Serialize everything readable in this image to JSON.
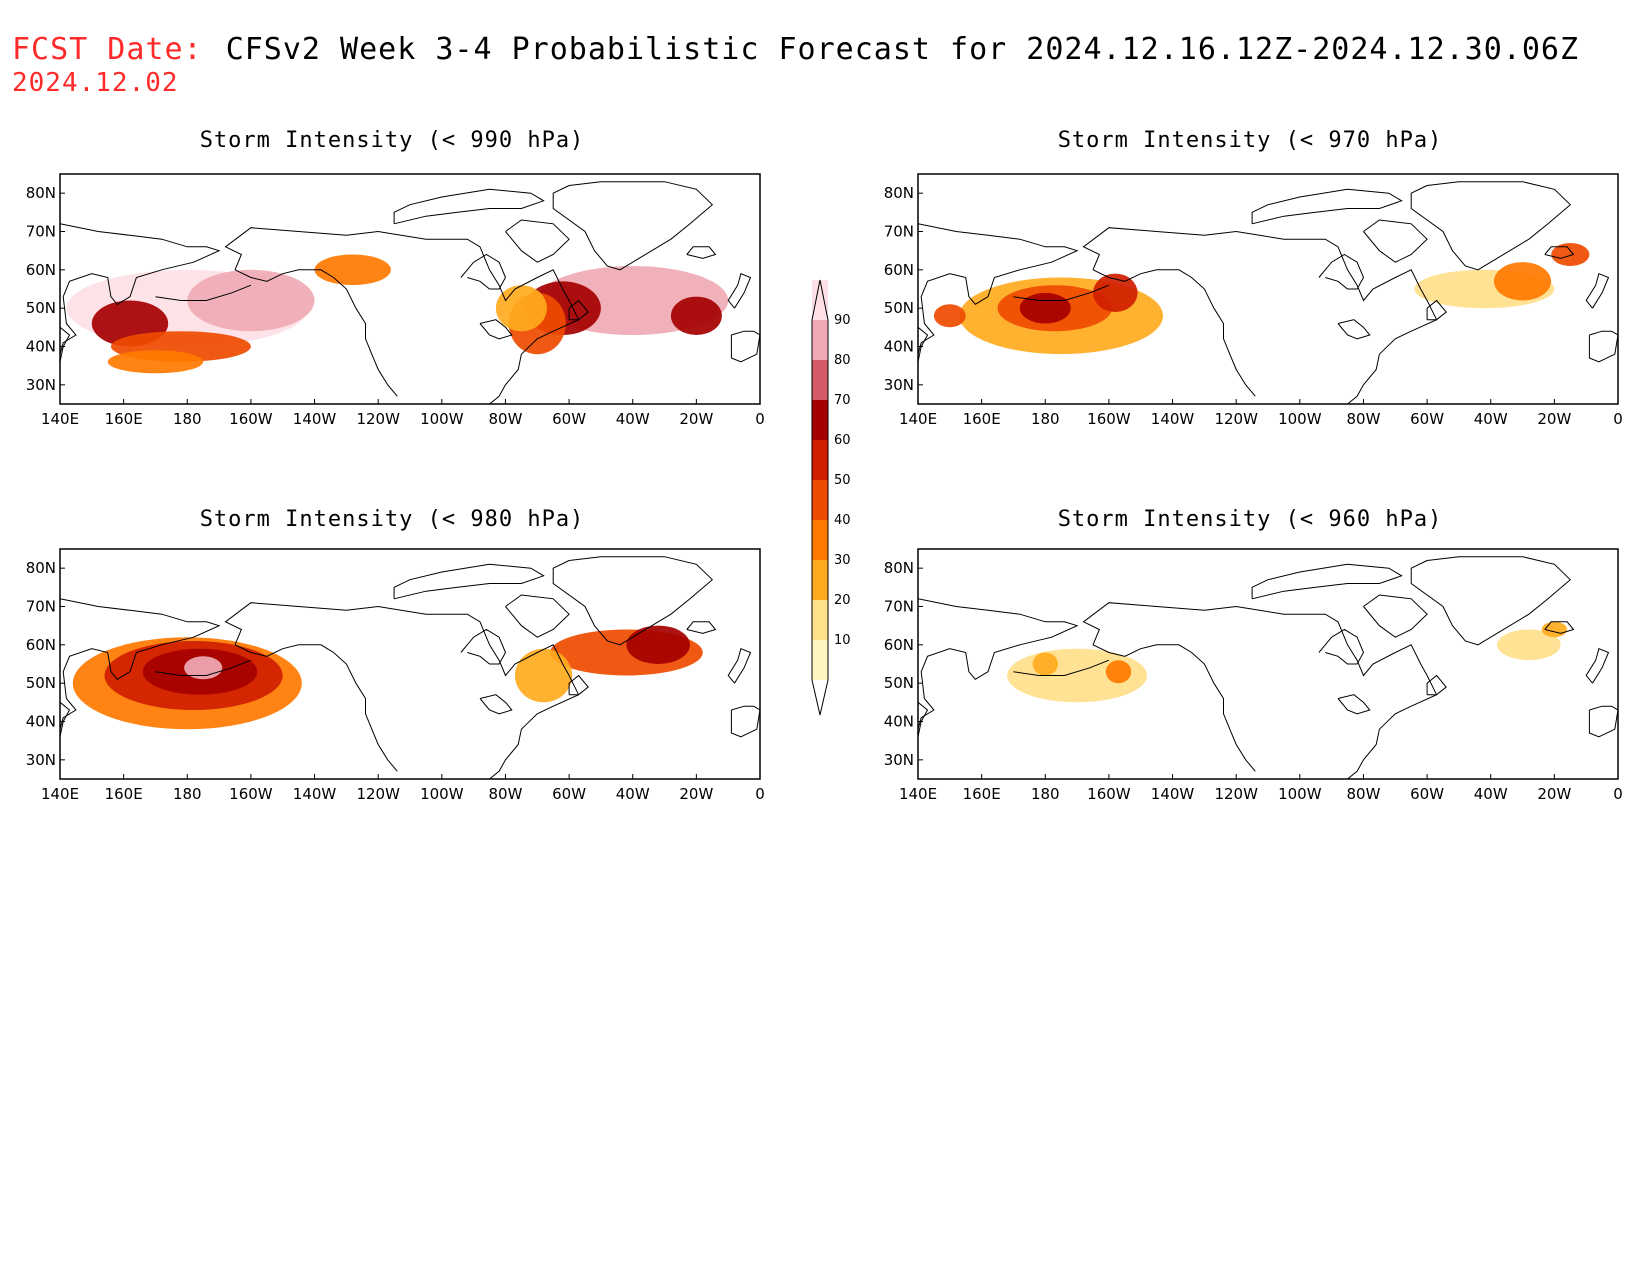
{
  "header": {
    "fcst_label": "FCST Date:",
    "title": "CFSv2 Week 3-4 Probabilistic Forecast for 2024.12.16.12Z-2024.12.30.06Z",
    "fcst_date": "2024.12.02"
  },
  "axes": {
    "lon_labels": [
      "140E",
      "160E",
      "180",
      "160W",
      "140W",
      "120W",
      "100W",
      "80W",
      "60W",
      "40W",
      "20W",
      "0"
    ],
    "lon_values": [
      140,
      160,
      180,
      200,
      220,
      240,
      260,
      280,
      300,
      320,
      340,
      360
    ],
    "lat_labels": [
      "80N",
      "70N",
      "60N",
      "50N",
      "40N",
      "30N"
    ],
    "lat_values": [
      80,
      70,
      60,
      50,
      40,
      30
    ],
    "lon_range": [
      140,
      360
    ],
    "lat_range": [
      25,
      85
    ]
  },
  "colorbar": {
    "levels": [
      10,
      20,
      30,
      40,
      50,
      60,
      70,
      80,
      90
    ],
    "labels": [
      "10",
      "20",
      "30",
      "40",
      "50",
      "60",
      "70",
      "80",
      "90"
    ],
    "colors": [
      "#fff5c0",
      "#ffe08a",
      "#ffaa1e",
      "#ff7a00",
      "#ef4b00",
      "#d01e00",
      "#a50000",
      "#d45a6a",
      "#f0aab4",
      "#fde0e6"
    ]
  },
  "panels": [
    {
      "id": "lt990",
      "title": "Storm Intensity (< 990 hPa)",
      "blobs": [
        {
          "lon": 180,
          "lat": 50,
          "rlon": 38,
          "rlat": 10,
          "level": 9
        },
        {
          "lon": 200,
          "lat": 52,
          "rlon": 20,
          "rlat": 8,
          "level": 8
        },
        {
          "lon": 162,
          "lat": 46,
          "rlon": 12,
          "rlat": 6,
          "level": 6
        },
        {
          "lon": 178,
          "lat": 40,
          "rlon": 22,
          "rlat": 4,
          "level": 4
        },
        {
          "lon": 170,
          "lat": 36,
          "rlon": 15,
          "rlat": 3,
          "level": 3
        },
        {
          "lon": 232,
          "lat": 60,
          "rlon": 12,
          "rlat": 4,
          "level": 3
        },
        {
          "lon": 320,
          "lat": 52,
          "rlon": 30,
          "rlat": 9,
          "level": 8
        },
        {
          "lon": 298,
          "lat": 50,
          "rlon": 12,
          "rlat": 7,
          "level": 6
        },
        {
          "lon": 290,
          "lat": 46,
          "rlon": 9,
          "rlat": 8,
          "level": 4
        },
        {
          "lon": 285,
          "lat": 50,
          "rlon": 8,
          "rlat": 6,
          "level": 2
        },
        {
          "lon": 340,
          "lat": 48,
          "rlon": 8,
          "rlat": 5,
          "level": 6
        }
      ]
    },
    {
      "id": "lt970",
      "title": "Storm Intensity (< 970 hPa)",
      "blobs": [
        {
          "lon": 185,
          "lat": 48,
          "rlon": 32,
          "rlat": 10,
          "level": 2
        },
        {
          "lon": 183,
          "lat": 50,
          "rlon": 18,
          "rlat": 6,
          "level": 4
        },
        {
          "lon": 180,
          "lat": 50,
          "rlon": 8,
          "rlat": 4,
          "level": 6
        },
        {
          "lon": 202,
          "lat": 54,
          "rlon": 7,
          "rlat": 5,
          "level": 5
        },
        {
          "lon": 150,
          "lat": 48,
          "rlon": 5,
          "rlat": 3,
          "level": 4
        },
        {
          "lon": 318,
          "lat": 55,
          "rlon": 22,
          "rlat": 5,
          "level": 1
        },
        {
          "lon": 330,
          "lat": 57,
          "rlon": 9,
          "rlat": 5,
          "level": 3
        },
        {
          "lon": 345,
          "lat": 64,
          "rlon": 6,
          "rlat": 3,
          "level": 4
        }
      ]
    },
    {
      "id": "lt980",
      "title": "Storm Intensity (< 980 hPa)",
      "blobs": [
        {
          "lon": 180,
          "lat": 50,
          "rlon": 36,
          "rlat": 12,
          "level": 3
        },
        {
          "lon": 182,
          "lat": 52,
          "rlon": 28,
          "rlat": 9,
          "level": 5
        },
        {
          "lon": 184,
          "lat": 53,
          "rlon": 18,
          "rlat": 6,
          "level": 6
        },
        {
          "lon": 185,
          "lat": 54,
          "rlon": 6,
          "rlat": 3,
          "level": 8
        },
        {
          "lon": 318,
          "lat": 58,
          "rlon": 24,
          "rlat": 6,
          "level": 4
        },
        {
          "lon": 328,
          "lat": 60,
          "rlon": 10,
          "rlat": 5,
          "level": 6
        },
        {
          "lon": 292,
          "lat": 52,
          "rlon": 9,
          "rlat": 7,
          "level": 2
        }
      ]
    },
    {
      "id": "lt960",
      "title": "Storm Intensity (< 960 hPa)",
      "blobs": [
        {
          "lon": 190,
          "lat": 52,
          "rlon": 22,
          "rlat": 7,
          "level": 1
        },
        {
          "lon": 203,
          "lat": 53,
          "rlon": 4,
          "rlat": 3,
          "level": 3
        },
        {
          "lon": 180,
          "lat": 55,
          "rlon": 4,
          "rlat": 3,
          "level": 2
        },
        {
          "lon": 332,
          "lat": 60,
          "rlon": 10,
          "rlat": 4,
          "level": 1
        },
        {
          "lon": 340,
          "lat": 64,
          "rlon": 4,
          "rlat": 2,
          "level": 2
        }
      ]
    }
  ]
}
